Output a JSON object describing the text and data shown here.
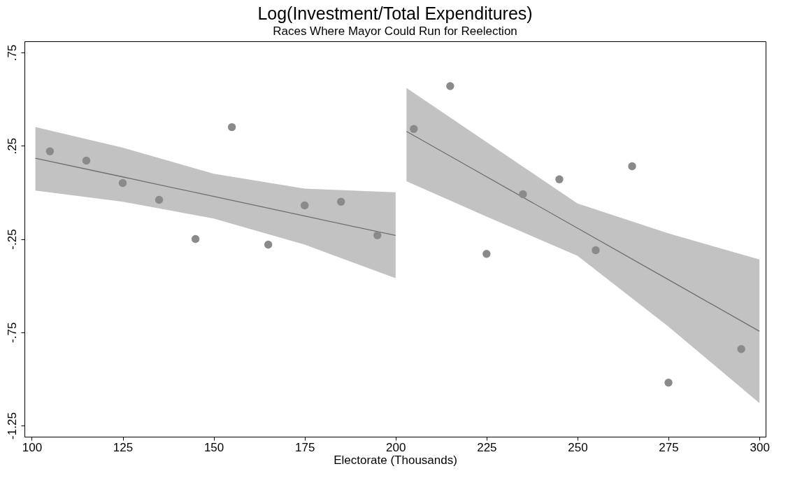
{
  "chart_data": {
    "type": "scatter",
    "title": "Log(Investment/Total Expenditures)",
    "subtitle": "Races Where Mayor Could Run for Reelection",
    "xlabel": "Electorate (Thousands)",
    "xlim": [
      98,
      301.7
    ],
    "xticks": [
      100,
      125,
      150,
      175,
      200,
      225,
      250,
      275,
      300
    ],
    "ylim": [
      -1.31,
      0.81
    ],
    "yticks": [
      {
        "value": 0.75,
        "label": ".75"
      },
      {
        "value": 0.25,
        "label": ".25"
      },
      {
        "value": -0.25,
        "label": "-.25"
      },
      {
        "value": -0.75,
        "label": "-.75"
      },
      {
        "value": -1.25,
        "label": "-1.25"
      }
    ],
    "grid": false,
    "marker": "circle",
    "series": [
      {
        "type": "line",
        "marker": "none",
        "color": "#6e6e6e",
        "x": [
          101,
          125,
          150,
          175,
          200
        ],
        "values": [
          0.183,
          0.083,
          -0.022,
          -0.127,
          -0.231
        ],
        "lower": [
          0.01,
          -0.05,
          -0.14,
          -0.28,
          -0.46
        ],
        "upper": [
          0.35,
          0.24,
          0.1,
          0.02,
          0.0
        ]
      },
      {
        "type": "line",
        "marker": "none",
        "color": "#6e6e6e",
        "x": [
          203,
          225,
          250,
          275,
          300
        ],
        "values": [
          0.327,
          0.084,
          -0.192,
          -0.468,
          -0.745
        ],
        "lower": [
          0.06,
          -0.13,
          -0.34,
          -0.72,
          -1.13
        ],
        "upper": [
          0.56,
          0.27,
          -0.06,
          -0.22,
          -0.36
        ]
      },
      {
        "color": "#8a8a8a",
        "x": [
          105,
          115,
          125,
          135,
          145,
          155,
          165,
          175,
          185,
          195,
          205,
          215,
          225,
          235,
          245,
          255,
          265,
          275,
          295
        ],
        "values": [
          0.22,
          0.17,
          0.05,
          -0.04,
          -0.25,
          0.35,
          -0.28,
          -0.07,
          -0.05,
          -0.23,
          0.34,
          0.57,
          -0.33,
          -0.01,
          0.07,
          -0.31,
          0.14,
          -1.02,
          -0.84
        ]
      }
    ]
  }
}
